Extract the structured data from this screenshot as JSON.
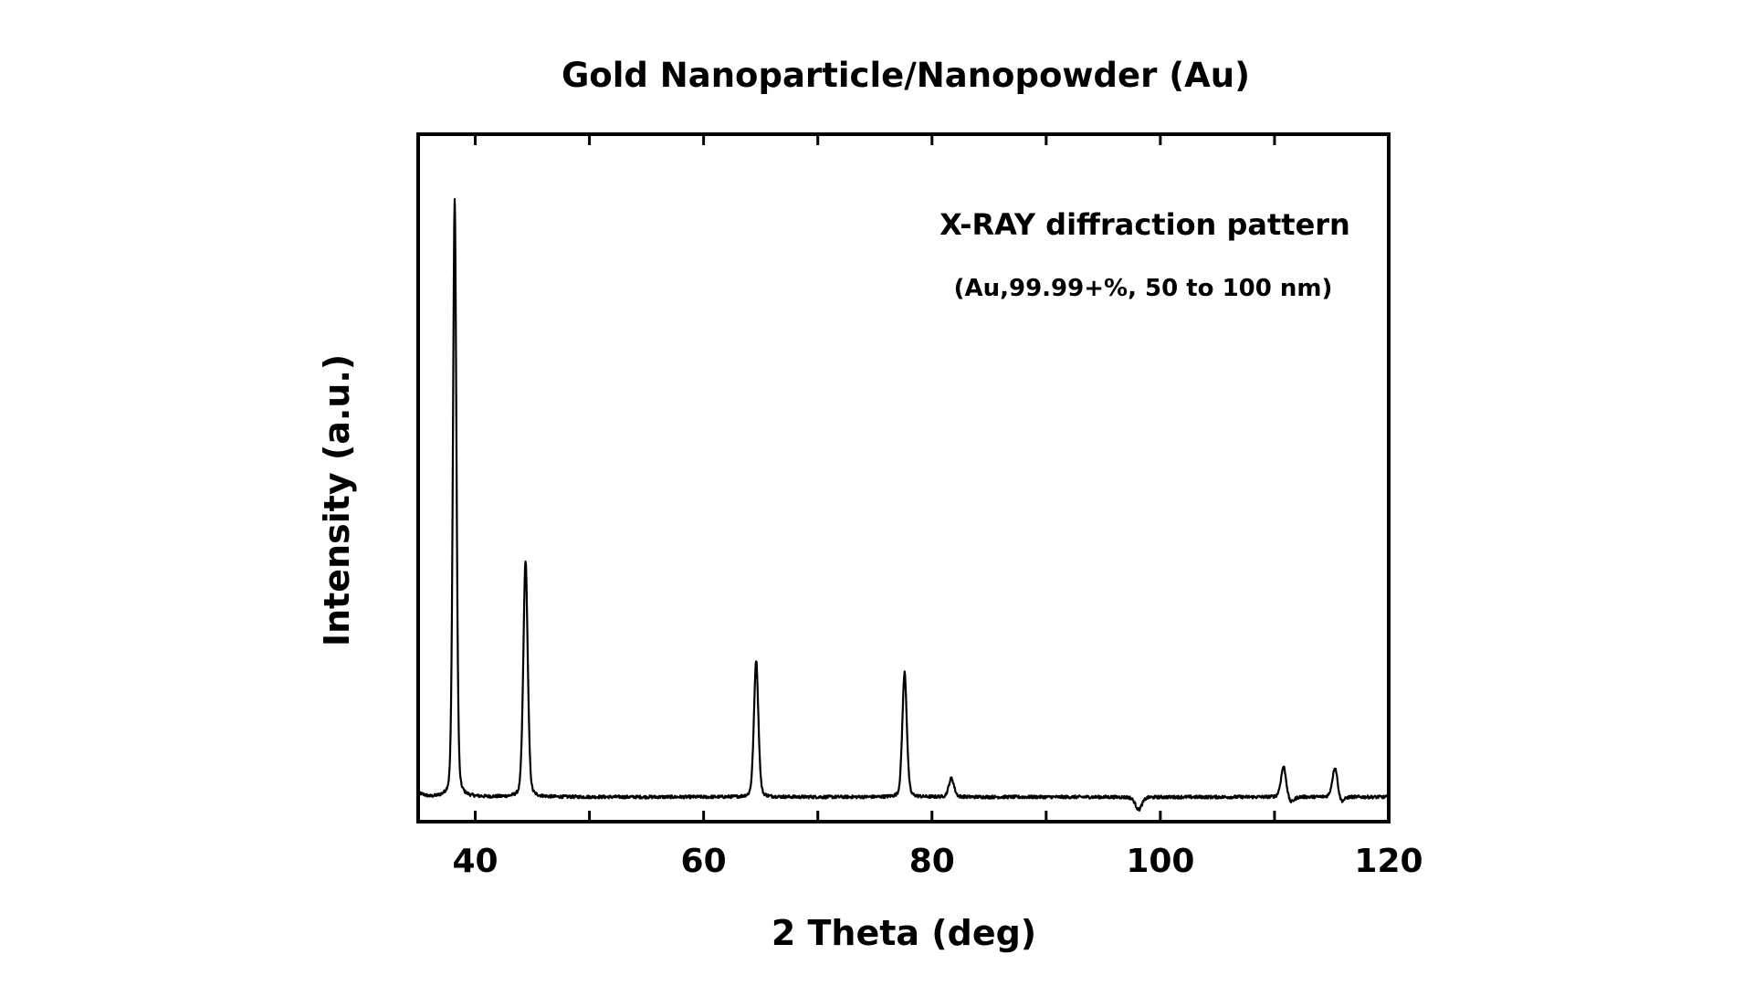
{
  "chart_data": {
    "type": "line",
    "title": "Gold Nanoparticle/Nanopowder (Au)",
    "xlabel": "2 Theta (deg)",
    "ylabel": "Intensity (a.u.)",
    "xlim": [
      35,
      120
    ],
    "ylim": [
      0,
      100
    ],
    "x_ticks": [
      40,
      60,
      80,
      100,
      120
    ],
    "x_tick_labels": [
      "40",
      "60",
      "80",
      "100",
      "120"
    ],
    "y_ticks_labeled": false,
    "grid": false,
    "annotation": {
      "line1": "X-RAY diffraction pattern",
      "line2": "(Au,99.99+%, 50 to 100 nm)",
      "placement": "top-right"
    },
    "baseline": 4,
    "peaks": [
      {
        "x": 38.2,
        "height": 100
      },
      {
        "x": 44.4,
        "height": 42
      },
      {
        "x": 64.6,
        "height": 26
      },
      {
        "x": 77.6,
        "height": 24
      },
      {
        "x": 81.7,
        "height": 7
      },
      {
        "x": 98.1,
        "height": 2
      },
      {
        "x": 110.8,
        "height": 9
      },
      {
        "x": 111.4,
        "height": 3
      },
      {
        "x": 115.3,
        "height": 9
      },
      {
        "x": 115.8,
        "height": 3
      }
    ],
    "series": [
      {
        "color": "#000000"
      }
    ]
  }
}
